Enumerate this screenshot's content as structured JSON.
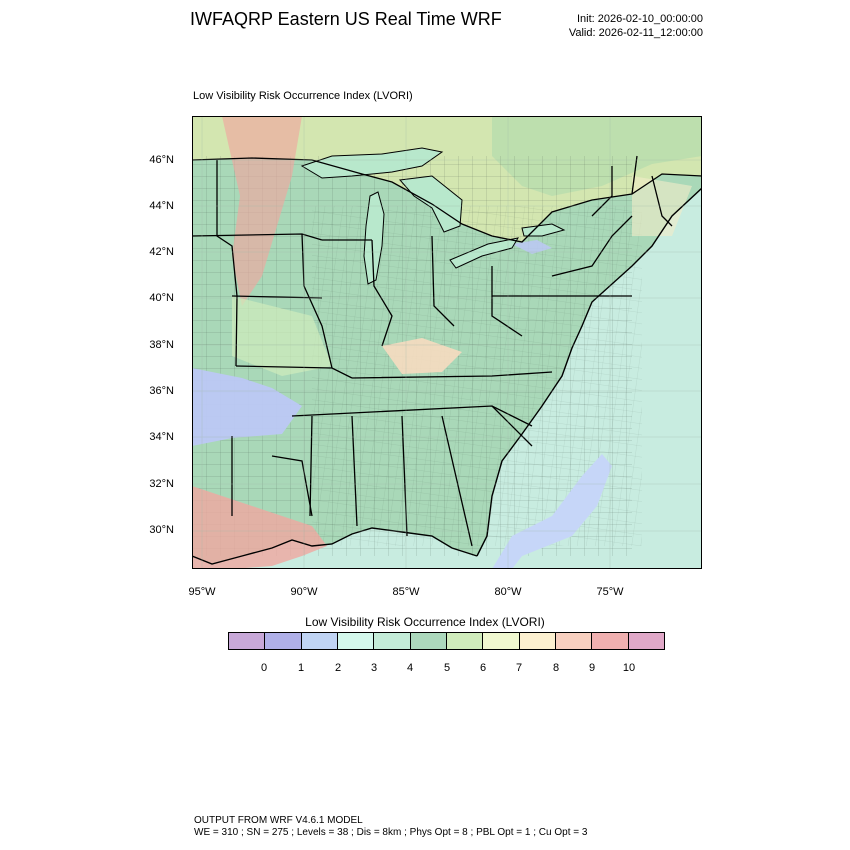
{
  "header": {
    "title": "IWFAQRP Eastern US Real Time WRF",
    "init": "Init: 2026-02-10_00:00:00",
    "valid": "Valid: 2026-02-11_12:00:00"
  },
  "map": {
    "field_title": "Low Visibility Risk Occurrence Index   (LVORI)",
    "lat_labels": [
      "46°N",
      "44°N",
      "42°N",
      "40°N",
      "38°N",
      "36°N",
      "34°N",
      "32°N",
      "30°N"
    ],
    "lon_labels": [
      "95°W",
      "90°W",
      "85°W",
      "80°W",
      "75°W"
    ],
    "colors": {
      "land_base": "#a9d8b8",
      "ocean": "#c8ece0",
      "lake": "#b8e8cc",
      "canada": "#d0e4b0",
      "high_risk": "#f0a8a0",
      "low_risk": "#bcc8f4"
    }
  },
  "colorbar": {
    "title": "Low Visibility Risk Occurrence Index  (LVORI)",
    "colors": [
      "#c8a8d8",
      "#b0b0e8",
      "#c0d4f4",
      "#d4f8ec",
      "#c4ecd8",
      "#acd8bc",
      "#d0ecbc",
      "#f0f8d0",
      "#fcf0d0",
      "#f8d0c0",
      "#f0b0b0",
      "#e0a8c8"
    ],
    "ticks": [
      "0",
      "1",
      "2",
      "3",
      "4",
      "5",
      "6",
      "7",
      "8",
      "9",
      "10"
    ]
  },
  "footer": {
    "line1": "OUTPUT FROM WRF V4.6.1 MODEL",
    "line2": "WE = 310 ; SN = 275 ; Levels = 38 ; Dis = 8km ; Phys Opt = 8 ; PBL Opt = 1 ; Cu Opt = 3"
  }
}
